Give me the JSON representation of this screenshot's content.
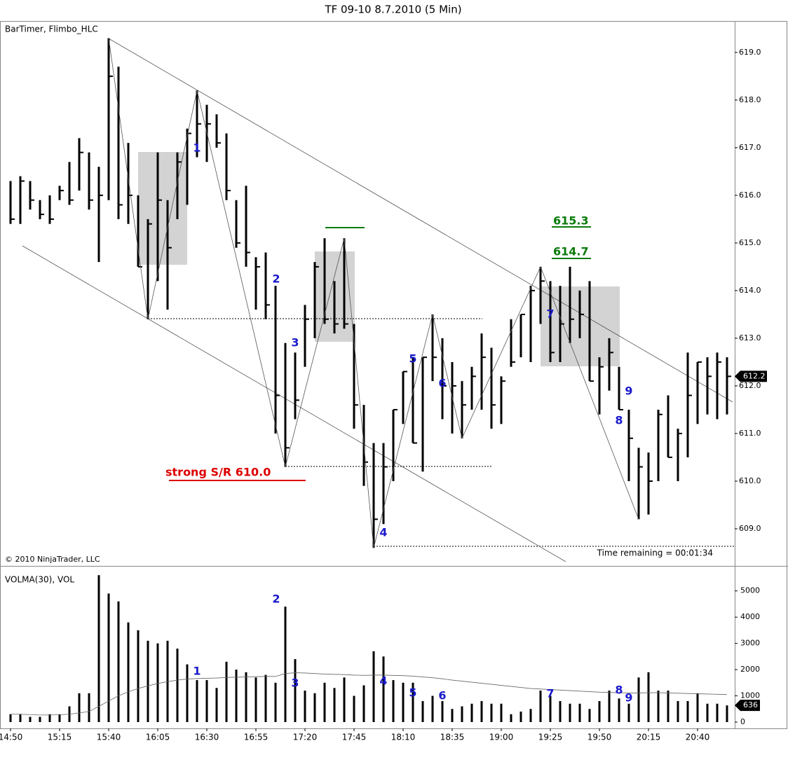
{
  "chart_data": [
    {
      "type": "hlc",
      "title": "TF 09-10  8.7.2010 (5 Min)",
      "indicator_label": "BarTimer, Flimbo_HLC",
      "copyright": "© 2010 NinjaTrader, LLC",
      "timer": "Time remaining = 00:01:34",
      "high": [
        616.3,
        616.4,
        616.3,
        615.9,
        616.0,
        616.2,
        616.7,
        617.2,
        616.9,
        616.6,
        619.3,
        618.7,
        617.1,
        616.0,
        615.5,
        616.9,
        615.9,
        616.9,
        617.4,
        618.2,
        617.9,
        617.7,
        617.3,
        615.9,
        616.2,
        614.7,
        614.8,
        614.1,
        612.9,
        612.7,
        613.7,
        614.6,
        615.1,
        614.2,
        615.1,
        613.3,
        611.6,
        610.8,
        610.8,
        611.5,
        612.3,
        612.6,
        612.6,
        613.5,
        613.0,
        612.5,
        612.1,
        612.4,
        613.1,
        612.8,
        612.2,
        613.4,
        613.5,
        614.1,
        614.5,
        614.2,
        614.1,
        614.5,
        614.0,
        614.2,
        612.6,
        613.0,
        612.4,
        611.5,
        610.7,
        610.6,
        611.5,
        611.8,
        611.1,
        612.7,
        612.5,
        612.6,
        612.7,
        612.6
      ],
      "low": [
        615.4,
        615.4,
        615.7,
        615.5,
        615.4,
        615.9,
        615.8,
        616.1,
        615.7,
        614.6,
        615.9,
        615.5,
        615.4,
        614.5,
        613.4,
        614.2,
        613.6,
        615.5,
        615.8,
        616.8,
        616.7,
        617.0,
        615.9,
        614.9,
        614.5,
        613.6,
        613.4,
        611.0,
        610.3,
        611.3,
        612.4,
        613.0,
        613.3,
        613.1,
        613.2,
        611.1,
        609.9,
        608.6,
        609.1,
        610.0,
        611.2,
        610.8,
        610.2,
        612.1,
        611.3,
        611.0,
        610.9,
        611.5,
        611.5,
        611.1,
        611.2,
        612.4,
        612.6,
        612.5,
        613.3,
        612.5,
        612.5,
        612.9,
        613.0,
        612.1,
        611.4,
        611.9,
        611.5,
        610.0,
        609.2,
        609.3,
        610.0,
        610.5,
        610.0,
        610.5,
        611.2,
        611.4,
        611.3,
        611.4
      ],
      "close": [
        615.5,
        616.3,
        615.9,
        615.6,
        615.5,
        616.1,
        615.9,
        616.9,
        615.9,
        616.0,
        618.5,
        615.8,
        616.0,
        614.5,
        615.4,
        615.9,
        614.9,
        616.7,
        617.3,
        617.5,
        617.5,
        617.1,
        616.1,
        615.0,
        614.8,
        614.5,
        613.7,
        611.8,
        610.7,
        611.7,
        613.4,
        614.5,
        613.4,
        613.3,
        613.3,
        611.6,
        610.4,
        609.2,
        610.3,
        611.5,
        612.3,
        610.8,
        612.6,
        612.6,
        612.0,
        612.0,
        611.6,
        612.2,
        612.6,
        611.6,
        612.1,
        612.5,
        613.5,
        614.0,
        614.2,
        612.7,
        613.3,
        613.4,
        613.5,
        612.1,
        612.4,
        612.7,
        611.5,
        610.9,
        610.3,
        610.0,
        611.4,
        610.5,
        611.0,
        611.8,
        612.5,
        612.2,
        612.5,
        612.2
      ],
      "zigzag": {
        "x": [
          10,
          14,
          19,
          28,
          34,
          37,
          43,
          46,
          54,
          64
        ],
        "y": [
          619.3,
          613.4,
          618.2,
          610.3,
          615.1,
          608.6,
          613.5,
          610.9,
          614.5,
          609.2
        ]
      },
      "wave_labels": [
        "1",
        "2",
        "3",
        "4",
        "5",
        "6",
        "7",
        "8",
        "9"
      ],
      "annotations": [
        "strong S/R 610.0",
        "615.3",
        "614.7"
      ],
      "ylim": [
        608.25,
        619.63
      ],
      "yticks": [
        {
          "value": 609,
          "label": "609.0"
        },
        {
          "value": 610,
          "label": "610.0"
        },
        {
          "value": 611,
          "label": "611.0"
        },
        {
          "value": 612,
          "label": "612.0"
        },
        {
          "value": 613,
          "label": "613.0"
        },
        {
          "value": 614,
          "label": "614.0"
        },
        {
          "value": 615,
          "label": "615.0"
        },
        {
          "value": 616,
          "label": "616.0"
        },
        {
          "value": 617,
          "label": "617.0"
        },
        {
          "value": 618,
          "label": "618.0"
        },
        {
          "value": 619,
          "label": "619.0"
        }
      ]
    },
    {
      "type": "bar",
      "title": "VOLMA(30), VOL",
      "categories": [
        "14:50",
        null,
        null,
        null,
        null,
        "15:15",
        null,
        null,
        null,
        null,
        "15:40",
        null,
        null,
        null,
        null,
        "16:05",
        null,
        null,
        null,
        null,
        "16:30",
        null,
        null,
        null,
        null,
        "16:55",
        null,
        null,
        null,
        null,
        "17:20",
        null,
        null,
        null,
        null,
        "17:45",
        null,
        null,
        null,
        null,
        "18:10",
        null,
        null,
        null,
        null,
        "18:35",
        null,
        null,
        null,
        null,
        "19:00",
        null,
        null,
        null,
        null,
        "19:25",
        null,
        null,
        null,
        null,
        "19:50",
        null,
        null,
        null,
        null,
        "20:15",
        null,
        null,
        null,
        null,
        "20:40",
        null,
        null,
        null
      ],
      "values": [
        300,
        300,
        200,
        200,
        300,
        300,
        600,
        1100,
        1100,
        5600,
        4900,
        4600,
        3800,
        3500,
        3100,
        3000,
        3100,
        2800,
        2200,
        1600,
        1600,
        1300,
        2300,
        2000,
        1900,
        1700,
        1800,
        1500,
        4400,
        2400,
        1200,
        1100,
        1500,
        1300,
        1700,
        1000,
        1400,
        2700,
        2500,
        1600,
        1500,
        1500,
        800,
        1000,
        800,
        500,
        600,
        700,
        800,
        700,
        700,
        300,
        400,
        500,
        1200,
        1000,
        800,
        700,
        700,
        500,
        800,
        1200,
        900,
        700,
        1700,
        1900,
        1200,
        1200,
        800,
        800,
        1100,
        700,
        700,
        636
      ],
      "volma": [
        300,
        300,
        280,
        270,
        270,
        280,
        300,
        350,
        400,
        600,
        800,
        1000,
        1150,
        1280,
        1380,
        1470,
        1540,
        1600,
        1640,
        1660,
        1670,
        1680,
        1700,
        1710,
        1720,
        1730,
        1740,
        1740,
        1850,
        1880,
        1870,
        1850,
        1830,
        1820,
        1810,
        1790,
        1780,
        1790,
        1790,
        1780,
        1770,
        1750,
        1720,
        1690,
        1650,
        1600,
        1560,
        1520,
        1480,
        1440,
        1400,
        1360,
        1320,
        1280,
        1260,
        1240,
        1220,
        1200,
        1180,
        1160,
        1140,
        1130,
        1120,
        1110,
        1110,
        1120,
        1120,
        1110,
        1100,
        1090,
        1080,
        1070,
        1060,
        1050
      ],
      "wave_labels": [
        "1",
        "2",
        "3",
        "4",
        "5",
        "6",
        "7",
        "8",
        "9"
      ],
      "ylim": [
        0,
        5900
      ],
      "yticks": [
        0,
        1000,
        2000,
        3000,
        4000,
        5000
      ]
    }
  ]
}
